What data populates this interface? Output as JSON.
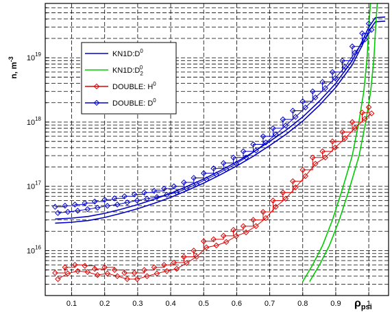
{
  "chart_data": {
    "type": "line",
    "xlabel": "ρ",
    "xlabel_sub": "psi",
    "ylabel": "n, m",
    "ylabel_sup": "-3",
    "xlim": [
      0.02,
      1.06
    ],
    "ylim": [
      2000000000000000.0,
      7e+19
    ],
    "yscale": "log",
    "grid": true,
    "grid_style": "dashed",
    "legend_position": "upper-left",
    "x_ticks": [
      0.1,
      0.2,
      0.3,
      0.4,
      0.5,
      0.6,
      0.7,
      0.8,
      0.9,
      1
    ],
    "x_tick_labels": [
      "0.1",
      "0.2",
      "0.3",
      "0.4",
      "0.5",
      "0.6",
      "0.7",
      "0.8",
      "0.9",
      "1"
    ],
    "y_ticks": [
      {
        "value": 1e+16,
        "base": "10",
        "exp": "16"
      },
      {
        "value": 1e+17,
        "base": "10",
        "exp": "17"
      },
      {
        "value": 1e+18,
        "base": "10",
        "exp": "18"
      },
      {
        "value": 1e+19,
        "base": "10",
        "exp": "19"
      }
    ],
    "series": [
      {
        "name": "KN1D:D",
        "name_sup": "0",
        "name_sub": "",
        "color": "#0000cc",
        "marker": "none",
        "x": [
          0.05,
          0.1,
          0.15,
          0.2,
          0.25,
          0.3,
          0.35,
          0.4,
          0.45,
          0.5,
          0.55,
          0.6,
          0.65,
          0.7,
          0.75,
          0.8,
          0.85,
          0.9,
          0.95,
          0.98,
          1.0,
          1.02,
          1.05
        ],
        "y": [
          3.1e+16,
          3.2e+16,
          3.4e+16,
          3.8e+16,
          4.4e+16,
          5.2e+16,
          6.3e+16,
          7.8e+16,
          1e+17,
          1.3e+17,
          1.75e+17,
          2.4e+17,
          3.4e+17,
          5e+17,
          7.5e+17,
          1.2e+18,
          2.1e+18,
          4e+18,
          9e+18,
          1.8e+19,
          3e+19,
          4.2e+19,
          4.3e+19
        ]
      },
      {
        "name": "KN1D:D",
        "name_sup": "0",
        "name_sub": "2",
        "color": "#00cc00",
        "marker": "none",
        "x": [
          0.8,
          0.83,
          0.86,
          0.89,
          0.92,
          0.95,
          0.97,
          0.985,
          0.995,
          1.0,
          1.005
        ],
        "y": [
          3300000000000000.0,
          6000000000000000.0,
          1.2e+16,
          3e+16,
          9e+16,
          3e+17,
          1e+18,
          3e+18,
          1e+19,
          3e+19,
          7e+19
        ]
      },
      {
        "name": "DOUBLE: H",
        "name_sup": "0",
        "name_sub": "",
        "color": "#dd0000",
        "marker": "diamond",
        "x": [
          0.05,
          0.08,
          0.11,
          0.14,
          0.17,
          0.2,
          0.23,
          0.26,
          0.29,
          0.32,
          0.35,
          0.38,
          0.41,
          0.44,
          0.47,
          0.5,
          0.53,
          0.56,
          0.59,
          0.62,
          0.65,
          0.68,
          0.71,
          0.74,
          0.77,
          0.8,
          0.83,
          0.86,
          0.89,
          0.92,
          0.95,
          0.98,
          1.0
        ],
        "y": [
          4500000000000000.0,
          5500000000000000.0,
          6000000000000000.0,
          5800000000000000.0,
          5200000000000000.0,
          5500000000000000.0,
          5000000000000000.0,
          4500000000000000.0,
          4500000000000000.0,
          5000000000000000.0,
          5500000000000000.0,
          6000000000000000.0,
          6500000000000000.0,
          8000000000000000.0,
          1e+16,
          1.4e+16,
          1.5e+16,
          1.7e+16,
          2.1e+16,
          2.4e+16,
          3e+16,
          4e+16,
          6e+16,
          8e+16,
          1.2e+17,
          1.8e+17,
          2.8e+17,
          3.5e+17,
          5e+17,
          7e+17,
          1e+18,
          1.4e+18,
          1.7e+18
        ]
      },
      {
        "name": "DOUBLE: D",
        "name_sup": "0",
        "name_sub": "",
        "color": "#0000cc",
        "marker": "diamond",
        "x": [
          0.05,
          0.08,
          0.11,
          0.14,
          0.17,
          0.2,
          0.23,
          0.26,
          0.29,
          0.32,
          0.35,
          0.38,
          0.41,
          0.44,
          0.47,
          0.5,
          0.53,
          0.56,
          0.59,
          0.62,
          0.65,
          0.68,
          0.71,
          0.74,
          0.77,
          0.8,
          0.83,
          0.86,
          0.89,
          0.92,
          0.95,
          0.98,
          1.0
        ],
        "y": [
          4.8e+16,
          5e+16,
          5.2e+16,
          5.5e+16,
          5.8e+16,
          6.2e+16,
          6.5e+16,
          7e+16,
          7.5e+16,
          8e+16,
          8.5e+16,
          9.2e+16,
          1e+17,
          1.15e+17,
          1.35e+17,
          1.6e+17,
          1.9e+17,
          2.3e+17,
          2.8e+17,
          3.5e+17,
          4.5e+17,
          6e+17,
          8e+17,
          1.1e+18,
          1.5e+18,
          2.1e+18,
          3e+18,
          4.2e+18,
          6e+18,
          9e+18,
          1.5e+19,
          2.4e+19,
          3.4e+19
        ]
      }
    ]
  }
}
